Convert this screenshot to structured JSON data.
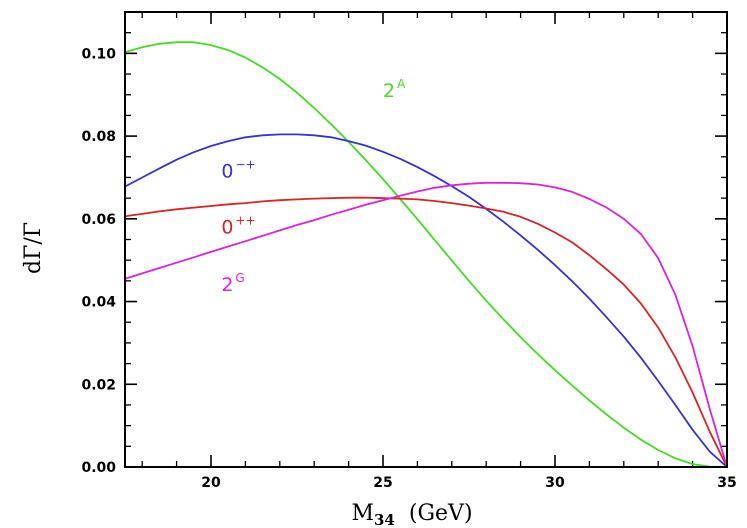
{
  "chart_data": {
    "type": "line",
    "xlabel": {
      "main": "M",
      "sub": "34",
      "unit": "(GeV)"
    },
    "ylabel": "dΓ/Γ",
    "xlim": [
      17.5,
      35
    ],
    "ylim": [
      0,
      0.11
    ],
    "xticks": [
      {
        "value": 20,
        "label": "20"
      },
      {
        "value": 25,
        "label": "25"
      },
      {
        "value": 30,
        "label": "30"
      },
      {
        "value": 35,
        "label": "35"
      }
    ],
    "yticks": [
      {
        "value": 0.0,
        "label": "0.00"
      },
      {
        "value": 0.02,
        "label": "0.02"
      },
      {
        "value": 0.04,
        "label": "0.04"
      },
      {
        "value": 0.06,
        "label": "0.06"
      },
      {
        "value": 0.08,
        "label": "0.08"
      },
      {
        "value": 0.1,
        "label": "0.10"
      }
    ],
    "x_minor_step": 1,
    "y_minor_step": 0.005,
    "series": [
      {
        "name": "2A",
        "label_base": "2",
        "label_sup": "A",
        "label_at": {
          "x": 25.0,
          "y": 0.0895
        },
        "color": "#44dd22",
        "x": [
          17.5,
          18.0,
          18.5,
          19.0,
          19.5,
          20.0,
          20.5,
          21.0,
          21.5,
          22.0,
          22.5,
          23.0,
          23.5,
          24.0,
          24.5,
          25.0,
          25.5,
          26.0,
          26.5,
          27.0,
          27.5,
          28.0,
          28.5,
          29.0,
          29.5,
          30.0,
          30.5,
          31.0,
          31.5,
          32.0,
          32.5,
          33.0,
          33.5,
          34.0,
          34.5,
          35.0
        ],
        "y": [
          0.1003,
          0.1015,
          0.1023,
          0.1027,
          0.1027,
          0.102,
          0.1008,
          0.099,
          0.0966,
          0.0938,
          0.0905,
          0.0868,
          0.0828,
          0.0786,
          0.0742,
          0.0696,
          0.0648,
          0.0599,
          0.0549,
          0.0499,
          0.045,
          0.0402,
          0.0357,
          0.0314,
          0.0273,
          0.0234,
          0.0197,
          0.0161,
          0.0127,
          0.0095,
          0.0066,
          0.0041,
          0.0021,
          0.0007,
          0.0001,
          0.0
        ]
      },
      {
        "name": "0-+",
        "label_base": "0",
        "label_sup": "−+",
        "label_at": {
          "x": 20.3,
          "y": 0.07
        },
        "color": "#3333dd",
        "x": [
          17.5,
          18.0,
          18.5,
          19.0,
          19.5,
          20.0,
          20.5,
          21.0,
          21.5,
          22.0,
          22.5,
          23.0,
          23.5,
          24.0,
          24.5,
          25.0,
          25.5,
          26.0,
          26.5,
          27.0,
          27.5,
          28.0,
          28.5,
          29.0,
          29.5,
          30.0,
          30.5,
          31.0,
          31.5,
          32.0,
          32.5,
          33.0,
          33.5,
          34.0,
          34.5,
          35.0
        ],
        "y": [
          0.0678,
          0.07,
          0.0722,
          0.0743,
          0.0761,
          0.0776,
          0.0788,
          0.0797,
          0.0802,
          0.0804,
          0.0804,
          0.0802,
          0.0797,
          0.0788,
          0.0777,
          0.0762,
          0.0745,
          0.0725,
          0.0703,
          0.0679,
          0.0653,
          0.0624,
          0.0593,
          0.056,
          0.0525,
          0.0488,
          0.0449,
          0.0407,
          0.0362,
          0.0315,
          0.0264,
          0.0208,
          0.015,
          0.009,
          0.0037,
          0.0
        ]
      },
      {
        "name": "0++",
        "label_base": "0",
        "label_sup": "++",
        "label_at": {
          "x": 20.3,
          "y": 0.0565
        },
        "color": "#dd2222",
        "x": [
          17.5,
          18.0,
          18.5,
          19.0,
          19.5,
          20.0,
          20.5,
          21.0,
          21.5,
          22.0,
          22.5,
          23.0,
          23.5,
          24.0,
          24.5,
          25.0,
          25.5,
          26.0,
          26.5,
          27.0,
          27.5,
          28.0,
          28.5,
          29.0,
          29.5,
          30.0,
          30.5,
          31.0,
          31.5,
          32.0,
          32.5,
          33.0,
          33.5,
          34.0,
          34.5,
          35.0
        ],
        "y": [
          0.0606,
          0.0612,
          0.0618,
          0.0623,
          0.0627,
          0.0631,
          0.0635,
          0.0638,
          0.0642,
          0.0645,
          0.0647,
          0.0649,
          0.065,
          0.0651,
          0.0651,
          0.065,
          0.0649,
          0.0647,
          0.0643,
          0.0638,
          0.0632,
          0.0625,
          0.0617,
          0.0605,
          0.0588,
          0.0567,
          0.0543,
          0.0512,
          0.0478,
          0.0441,
          0.0395,
          0.0337,
          0.0265,
          0.018,
          0.0085,
          0.0
        ]
      },
      {
        "name": "2G",
        "label_base": "2",
        "label_sup": "G",
        "label_at": {
          "x": 20.3,
          "y": 0.0425
        },
        "color": "#dd22dd",
        "x": [
          17.5,
          18.0,
          18.5,
          19.0,
          19.5,
          20.0,
          20.5,
          21.0,
          21.5,
          22.0,
          22.5,
          23.0,
          23.5,
          24.0,
          24.5,
          25.0,
          25.5,
          26.0,
          26.5,
          27.0,
          27.5,
          28.0,
          28.5,
          29.0,
          29.5,
          30.0,
          30.5,
          31.0,
          31.5,
          32.0,
          32.5,
          33.0,
          33.5,
          34.0,
          34.5,
          35.0
        ],
        "y": [
          0.0455,
          0.0468,
          0.0481,
          0.0494,
          0.0507,
          0.052,
          0.0533,
          0.0546,
          0.0559,
          0.0572,
          0.0585,
          0.0597,
          0.061,
          0.0622,
          0.0634,
          0.0645,
          0.0656,
          0.0666,
          0.0675,
          0.0681,
          0.0685,
          0.0687,
          0.0687,
          0.0686,
          0.0683,
          0.0676,
          0.0665,
          0.0648,
          0.0627,
          0.06,
          0.0563,
          0.0505,
          0.0416,
          0.0292,
          0.014,
          0.0
        ]
      }
    ]
  }
}
